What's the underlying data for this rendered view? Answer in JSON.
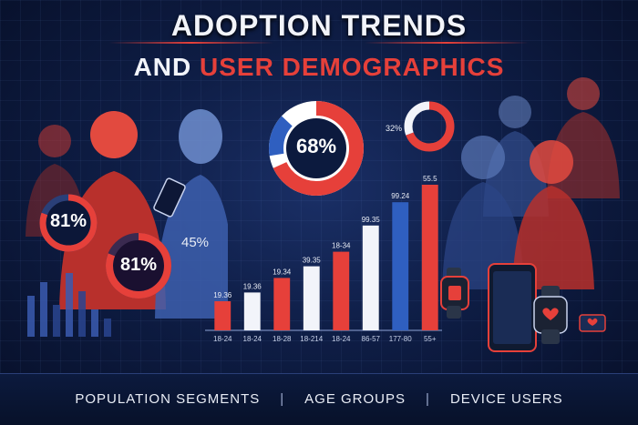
{
  "title": {
    "line1": "ADOPTION TRENDS",
    "line2_a": "AND ",
    "line2_b": "USER DEMOGRAPHICS"
  },
  "rings": {
    "big": "68%",
    "left": "81%",
    "mid": "81%",
    "small": "45%",
    "tiny": "32%"
  },
  "chart_data": {
    "type": "bar",
    "categories": [
      "18-24",
      "18-24",
      "18-28",
      "18-214",
      "18-24",
      "86-57",
      "177-80",
      "55+"
    ],
    "value_labels": [
      "19.36",
      "19.36",
      "19.34",
      "39.35",
      "18-34",
      "99.35",
      "99.24",
      "55.5"
    ],
    "values": [
      10,
      13,
      18,
      22,
      27,
      36,
      44,
      50
    ],
    "colors": [
      "#e6403a",
      "#f2f4fa",
      "#e6403a",
      "#f2f4fa",
      "#e6403a",
      "#f2f4fa",
      "#2f5fc0",
      "#e6403a"
    ]
  },
  "footer": {
    "item1": "POPULATION SEGMENTS",
    "sep": "|",
    "item2": "AGE GROUPS",
    "item3": "DEVICE USERS"
  },
  "icons": [
    "person-silhouette-icon",
    "smartphone-icon",
    "smartwatch-icon",
    "heart-icon",
    "donut-chart-icon"
  ],
  "colors": {
    "accent": "#e6403a",
    "blue": "#2f5fc0",
    "background": "#0a1430"
  }
}
